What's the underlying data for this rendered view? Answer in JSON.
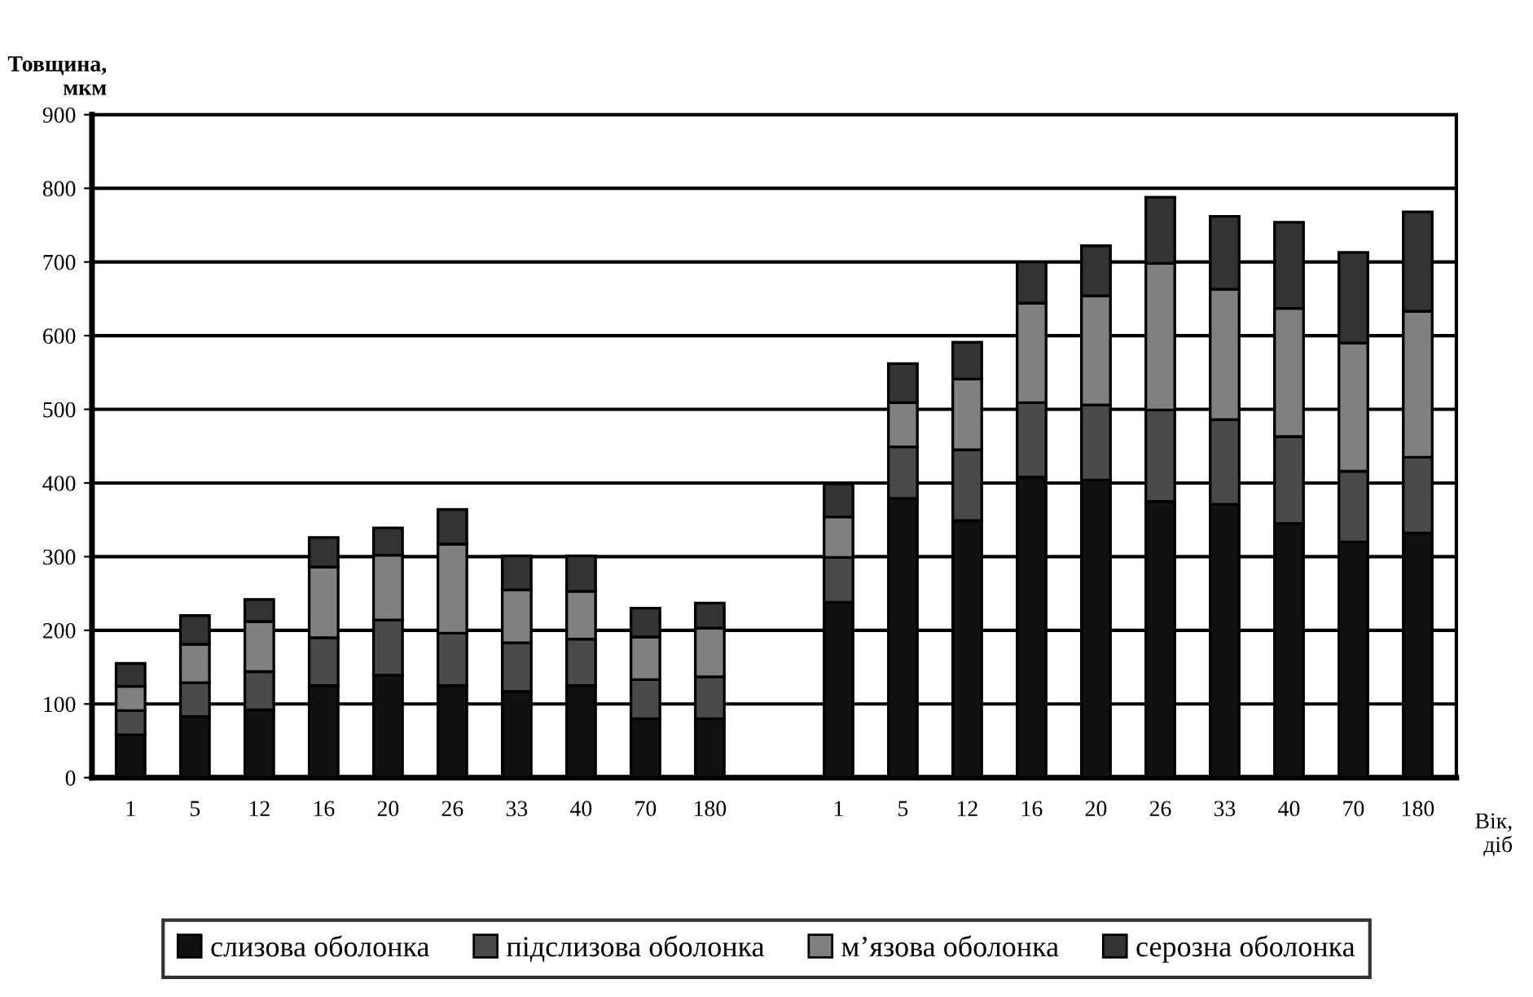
{
  "chart_data": {
    "type": "bar",
    "stacked": true,
    "xlabel": "Вік,\nдіб",
    "ylabel": "Товщина,\nмкм",
    "categories": [
      "1",
      "5",
      "12",
      "16",
      "20",
      "26",
      "33",
      "40",
      "70",
      "180",
      null,
      "1",
      "5",
      "12",
      "16",
      "20",
      "26",
      "33",
      "40",
      "70",
      "180"
    ],
    "series": [
      {
        "name": "слизова оболонка",
        "color": "#111111",
        "values": [
          58,
          83,
          92,
          125,
          139,
          125,
          117,
          125,
          80,
          80,
          null,
          238,
          379,
          349,
          408,
          404,
          375,
          371,
          345,
          320,
          332
        ]
      },
      {
        "name": "підслизова оболонка",
        "color": "#4a4a4a",
        "values": [
          33,
          46,
          52,
          65,
          75,
          71,
          66,
          63,
          53,
          57,
          null,
          61,
          70,
          96,
          101,
          102,
          124,
          115,
          118,
          96,
          103
        ]
      },
      {
        "name": "м’язова оболонка",
        "color": "#808080",
        "values": [
          33,
          52,
          68,
          96,
          88,
          121,
          72,
          65,
          58,
          66,
          null,
          55,
          60,
          96,
          135,
          148,
          199,
          177,
          174,
          174,
          198
        ]
      },
      {
        "name": "серозна оболонка",
        "color": "#333333",
        "values": [
          31,
          39,
          30,
          40,
          37,
          47,
          46,
          48,
          39,
          34,
          null,
          45,
          53,
          50,
          56,
          68,
          90,
          99,
          117,
          123,
          135
        ]
      }
    ],
    "ylim": [
      0,
      900
    ],
    "yticks": [
      0,
      100,
      200,
      300,
      400,
      500,
      600,
      700,
      800,
      900
    ],
    "grid": "y",
    "legend": "bottom"
  }
}
